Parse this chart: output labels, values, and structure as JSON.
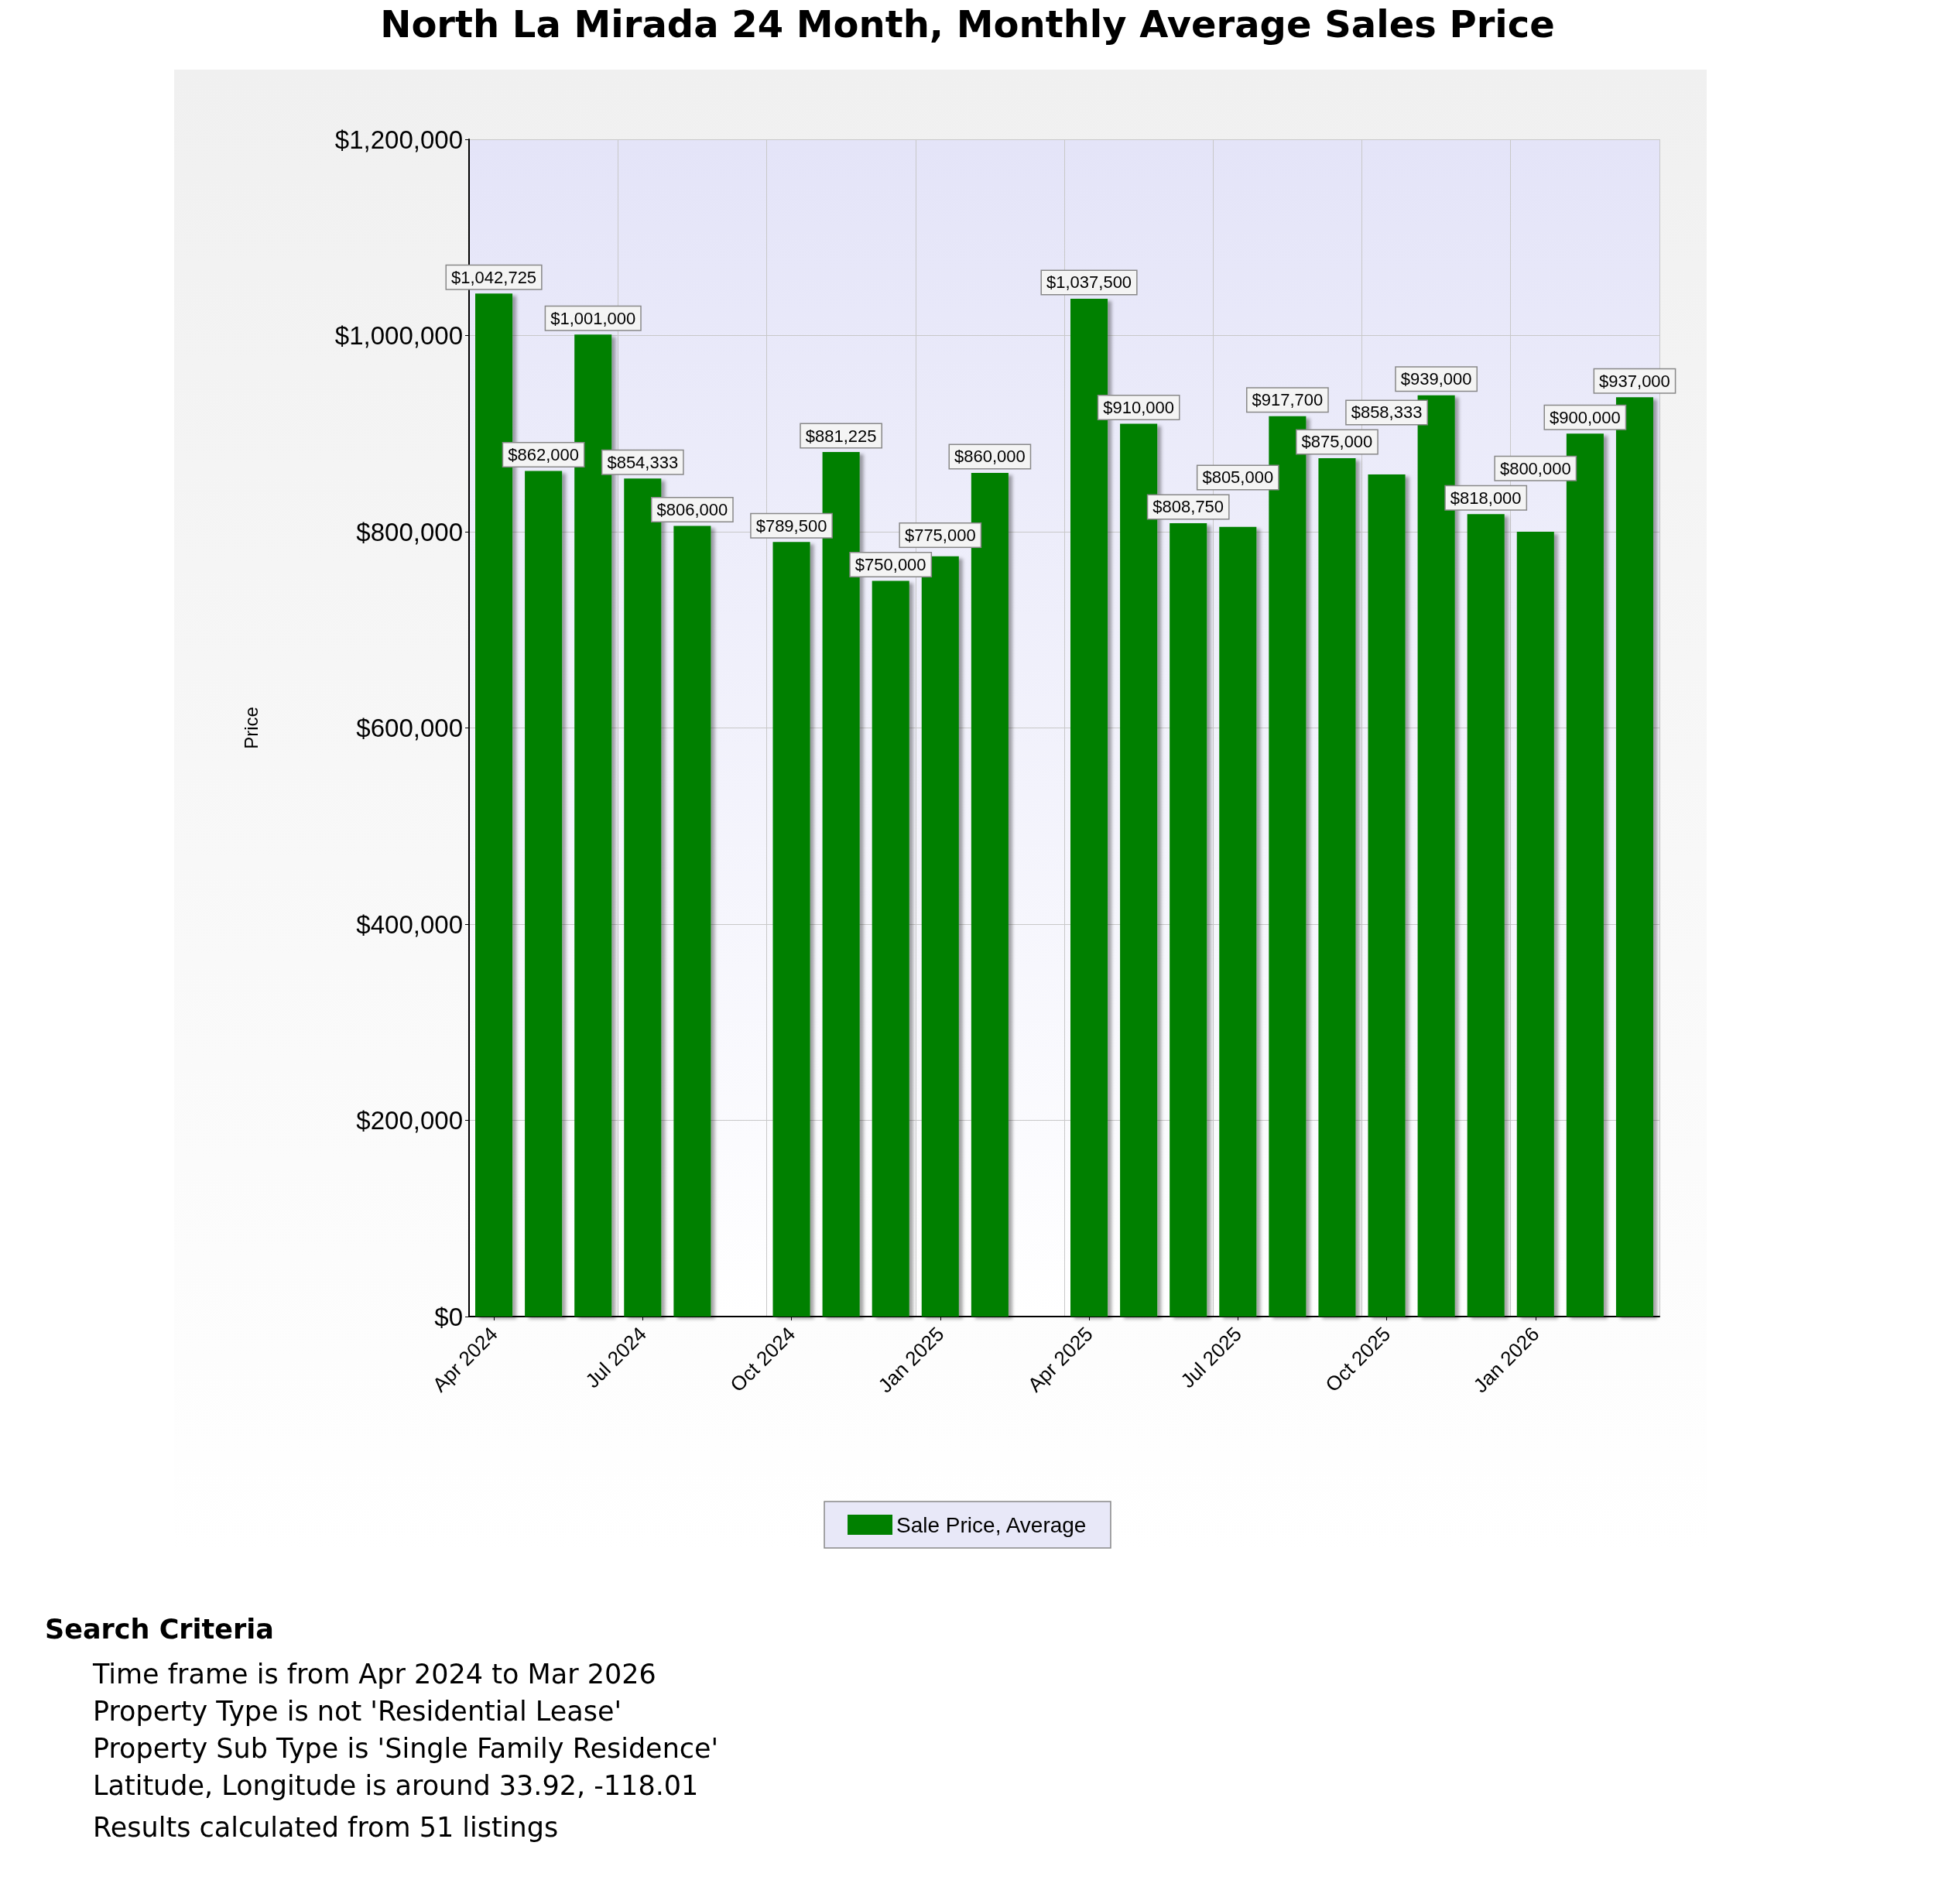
{
  "chart_data": {
    "type": "bar",
    "title": "North La Mirada 24 Month, Monthly Average Sales Price",
    "ylabel": "Price",
    "categories": [
      "Apr 2024",
      null,
      null,
      "Jul 2024",
      null,
      null,
      "Oct 2024",
      null,
      null,
      "Jan 2025",
      null,
      null,
      "Apr 2025",
      null,
      null,
      "Jul 2025",
      null,
      null,
      "Oct 2025",
      null,
      null,
      "Jan 2026",
      null,
      null
    ],
    "series": [
      {
        "name": "Sale Price, Average",
        "color": "#008000",
        "values": [
          1042725,
          862000,
          1001000,
          854333,
          806000,
          null,
          789500,
          881225,
          750000,
          775000,
          860000,
          null,
          1037500,
          910000,
          808750,
          805000,
          917700,
          875000,
          858333,
          939000,
          818000,
          800000,
          900000,
          937000
        ],
        "value_labels": [
          "$1,042,725",
          "$862,000",
          "$1,001,000",
          "$854,333",
          "$806,000",
          null,
          "$789,500",
          "$881,225",
          "$750,000",
          "$775,000",
          "$860,000",
          null,
          "$1,037,500",
          "$910,000",
          "$808,750",
          "$805,000",
          "$917,700",
          "$875,000",
          "$858,333",
          "$939,000",
          "$818,000",
          "$800,000",
          "$900,000",
          "$937,000"
        ]
      }
    ],
    "ylim": [
      0,
      1200000
    ],
    "yticks": [
      {
        "value": 0,
        "label": "$0"
      },
      {
        "value": 200000,
        "label": "$200,000"
      },
      {
        "value": 400000,
        "label": "$400,000"
      },
      {
        "value": 600000,
        "label": "$600,000"
      },
      {
        "value": 800000,
        "label": "$800,000"
      },
      {
        "value": 1000000,
        "label": "$1,000,000"
      },
      {
        "value": 1200000,
        "label": "$1,200,000"
      }
    ],
    "grid": true,
    "legend": "bottom",
    "annotations": [
      "Search Criteria",
      "Time frame is from Apr 2024 to Mar 2026",
      "Property Type is not 'Residential Lease'",
      "Property Sub Type is 'Single Family Residence'",
      "Latitude, Longitude is around 33.92, -118.01",
      "Results calculated from 51 listings"
    ]
  }
}
